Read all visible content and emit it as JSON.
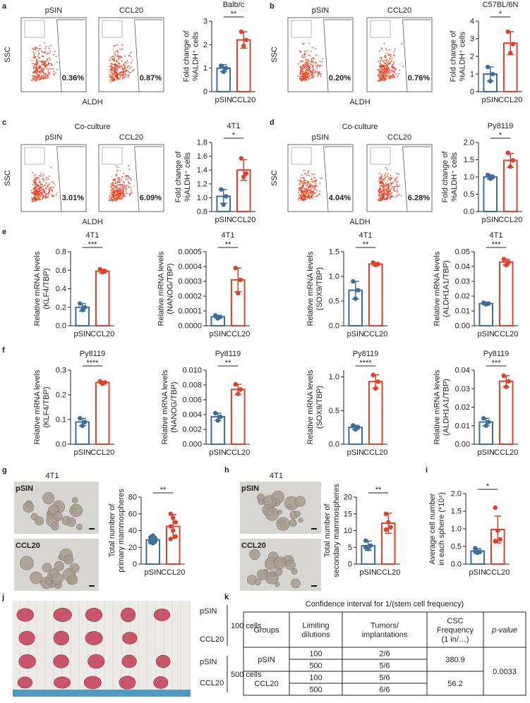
{
  "panel_letters": [
    "a",
    "b",
    "c",
    "d",
    "e",
    "f",
    "g",
    "h",
    "i",
    "j",
    "k"
  ],
  "flow_panels": [
    {
      "xlabel": "ALDH",
      "ylabel": "SSC",
      "colors": [
        "#3a6f9c",
        "#e2402b"
      ],
      "plots": [
        {
          "name": "pSIN",
          "percent": "0.36%"
        },
        {
          "name": "CCL20",
          "percent": "0.87%"
        }
      ]
    },
    {
      "xlabel": "ALDH",
      "ylabel": "SSC",
      "colors": [
        "#3a6f9c",
        "#e2402b"
      ],
      "plots": [
        {
          "name": "pSIN",
          "percent": "0.20%"
        },
        {
          "name": "CCL20",
          "percent": "0.76%"
        }
      ]
    },
    {
      "header": "Co-culture",
      "xlabel": "ALDH",
      "ylabel": "SSC",
      "colors": [
        "#3a6f9c",
        "#e2402b"
      ],
      "plots": [
        {
          "name": "pSIN",
          "percent": "3.01%"
        },
        {
          "name": "CCL20",
          "percent": "6.09%"
        }
      ]
    },
    {
      "header": "Co-culture",
      "xlabel": "ALDH",
      "ylabel": "SSC",
      "colors": [
        "#3a6f9c",
        "#e2402b"
      ],
      "plots": [
        {
          "name": "pSIN",
          "percent": "4.04%"
        },
        {
          "name": "CCL20",
          "percent": "6.28%"
        }
      ]
    }
  ],
  "chart_data": [
    {
      "type": "bar",
      "title": "Balb/c",
      "ylabel": [
        "Fold change of",
        "%ALDH⁺ cells"
      ],
      "categories": [
        "pSIN",
        "CCL20"
      ],
      "colors": [
        "#3a6f9c",
        "#e2402b"
      ],
      "values": [
        1.0,
        2.2
      ],
      "errors": [
        0.15,
        0.35
      ],
      "points": [
        [
          1.1,
          0.85,
          1.0
        ],
        [
          2.55,
          1.95,
          2.2
        ]
      ],
      "significance": "**",
      "ylim": [
        0,
        3
      ],
      "yticks": [
        0,
        1,
        2,
        3
      ]
    },
    {
      "type": "bar",
      "title": "C57BL/6N",
      "ylabel": [
        "Fold change of",
        "%ALDH⁺ cells"
      ],
      "categories": [
        "pSIN",
        "CCL20"
      ],
      "colors": [
        "#3a6f9c",
        "#e2402b"
      ],
      "values": [
        1.0,
        2.75
      ],
      "errors": [
        0.4,
        0.65
      ],
      "points": [
        [
          1.4,
          0.6,
          1.0
        ],
        [
          3.4,
          2.2,
          2.7
        ]
      ],
      "significance": "*",
      "ylim": [
        0,
        4
      ],
      "yticks": [
        0,
        1,
        2,
        3,
        4
      ]
    },
    {
      "type": "bar",
      "title": "4T1",
      "ylabel": [
        "Fold change of",
        "%ALDH⁺ cells"
      ],
      "categories": [
        "pSIN",
        "CCL20"
      ],
      "colors": [
        "#3a6f9c",
        "#e2402b"
      ],
      "values": [
        1.02,
        1.4
      ],
      "errors": [
        0.1,
        0.15
      ],
      "points": [
        [
          1.12,
          0.9,
          1.02
        ],
        [
          1.57,
          1.3,
          1.35
        ]
      ],
      "significance": "*",
      "ylim": [
        0.8,
        1.8
      ],
      "yticks": [
        0.8,
        {
          "value": 1,
          "label": "1.0"
        },
        1.2,
        1.4,
        1.6,
        1.8
      ]
    },
    {
      "type": "bar",
      "title": "Py8119",
      "ylabel": [
        "Fold change of",
        "%ALDH⁺ cells"
      ],
      "categories": [
        "pSIN",
        "CCL20"
      ],
      "colors": [
        "#3a6f9c",
        "#e2402b"
      ],
      "values": [
        1.0,
        1.48
      ],
      "errors": [
        0.06,
        0.2
      ],
      "points": [
        [
          1.06,
          0.95,
          1.0
        ],
        [
          1.7,
          1.3,
          1.48
        ]
      ],
      "significance": "*",
      "ylim": [
        0,
        2
      ],
      "yticks": [
        {
          "value": 0,
          "label": "0.0"
        },
        0.5,
        {
          "value": 1,
          "label": "1.0"
        },
        1.5,
        {
          "value": 2,
          "label": "2.0"
        }
      ]
    },
    {
      "type": "bar",
      "title": "4T1",
      "ylabel": [
        "Relative mRNA levels",
        "(KLF4/TBP)"
      ],
      "categories": [
        "pSIN",
        "CCL20"
      ],
      "colors": [
        "#3a6f9c",
        "#e2402b"
      ],
      "values": [
        0.2,
        0.59
      ],
      "errors": [
        0.04,
        0.02
      ],
      "points": [
        [
          0.24,
          0.17,
          0.2
        ],
        [
          0.61,
          0.58,
          0.59
        ]
      ],
      "significance": "***",
      "ylim": [
        0,
        0.8
      ],
      "yticks": [
        {
          "value": 0,
          "label": "0.0"
        },
        0.2,
        0.4,
        0.6,
        0.8
      ]
    },
    {
      "type": "bar",
      "title": "4T1",
      "ylabel": [
        "Relative mRNA levels",
        "(NANOG/TBP)"
      ],
      "categories": [
        "pSIN",
        "CCL20"
      ],
      "colors": [
        "#3a6f9c",
        "#e2402b"
      ],
      "values": [
        6e-05,
        0.00031
      ],
      "errors": [
        1e-05,
        8e-05
      ],
      "points": [
        [
          7e-05,
          5e-05,
          6e-05
        ],
        [
          0.00039,
          0.00022,
          0.00031
        ]
      ],
      "significance": "**",
      "ylim": [
        0,
        0.0005
      ],
      "yticks": [
        {
          "value": 0,
          "label": "0.0000"
        },
        {
          "value": 0.0001,
          "label": "0.0001"
        },
        {
          "value": 0.0002,
          "label": "0.0002"
        },
        {
          "value": 0.0003,
          "label": "0.0003"
        },
        {
          "value": 0.0004,
          "label": "0.0004"
        },
        {
          "value": 0.0005,
          "label": "0.0005"
        }
      ]
    },
    {
      "type": "bar",
      "title": "4T1",
      "ylabel": [
        "Relative mRNA levels",
        "(SOX9/TBP)"
      ],
      "categories": [
        "pSIN",
        "CCL20"
      ],
      "colors": [
        "#3a6f9c",
        "#e2402b"
      ],
      "values": [
        0.72,
        1.25
      ],
      "errors": [
        0.18,
        0.03
      ],
      "points": [
        [
          0.9,
          0.55,
          0.72
        ],
        [
          1.28,
          1.23,
          1.25
        ]
      ],
      "significance": "**",
      "ylim": [
        0,
        1.5
      ],
      "yticks": [
        {
          "value": 0,
          "label": "0.0"
        },
        0.5,
        {
          "value": 1,
          "label": "1.0"
        },
        1.5
      ]
    },
    {
      "type": "bar",
      "title": "4T1",
      "ylabel": [
        "Relative mRNA levels",
        "(ALDH1A1/TBP)"
      ],
      "categories": [
        "pSIN",
        "CCL20"
      ],
      "colors": [
        "#3a6f9c",
        "#e2402b"
      ],
      "values": [
        0.015,
        0.043
      ],
      "errors": [
        0.001,
        0.002
      ],
      "points": [
        [
          0.0155,
          0.0145,
          0.015
        ],
        [
          0.045,
          0.041,
          0.043
        ]
      ],
      "significance": "***",
      "ylim": [
        0,
        0.05
      ],
      "yticks": [
        {
          "value": 0,
          "label": "0.00"
        },
        0.01,
        0.02,
        0.03,
        0.04,
        0.05
      ]
    },
    {
      "type": "bar",
      "title": "Py8119",
      "ylabel": [
        "Relative mRNA levels",
        "(KLF4/TBP)"
      ],
      "categories": [
        "pSIN",
        "CCL20"
      ],
      "colors": [
        "#3a6f9c",
        "#e2402b"
      ],
      "values": [
        0.09,
        0.25
      ],
      "errors": [
        0.015,
        0.005
      ],
      "points": [
        [
          0.105,
          0.075,
          0.09
        ],
        [
          0.255,
          0.245,
          0.25
        ]
      ],
      "significance": "****",
      "ylim": [
        0,
        0.3
      ],
      "yticks": [
        {
          "value": 0,
          "label": "0.0"
        },
        0.1,
        0.2,
        0.3
      ]
    },
    {
      "type": "bar",
      "title": "Py8119",
      "ylabel": [
        "Relative mRNA levels",
        "(NANOG/TBP)"
      ],
      "categories": [
        "pSIN",
        "CCL20"
      ],
      "colors": [
        "#3a6f9c",
        "#e2402b"
      ],
      "values": [
        0.0037,
        0.0074
      ],
      "errors": [
        0.0005,
        0.0007
      ],
      "points": [
        [
          0.0042,
          0.0032,
          0.0037
        ],
        [
          0.0081,
          0.0068,
          0.0074
        ]
      ],
      "significance": "**",
      "ylim": [
        0,
        0.01
      ],
      "yticks": [
        {
          "value": 0,
          "label": "0.000"
        },
        0.002,
        0.004,
        0.006,
        0.008,
        {
          "value": 0.01,
          "label": "0.010"
        }
      ]
    },
    {
      "type": "bar",
      "title": "Py8119",
      "ylabel": [
        "Relative mRNA levels",
        "(SOX9/TBP)"
      ],
      "categories": [
        "pSIN",
        "CCL20"
      ],
      "colors": [
        "#3a6f9c",
        "#e2402b"
      ],
      "values": [
        0.25,
        0.93
      ],
      "errors": [
        0.03,
        0.1
      ],
      "points": [
        [
          0.28,
          0.22,
          0.25
        ],
        [
          1.03,
          0.83,
          0.93
        ]
      ],
      "significance": "****",
      "ylim": [
        0,
        1.1
      ],
      "yticks": [
        {
          "value": 0,
          "label": "0.0"
        },
        0.5,
        {
          "value": 1,
          "label": "1.0"
        }
      ]
    },
    {
      "type": "bar",
      "title": "Py8119",
      "ylabel": [
        "Relative mRNA levels",
        "(ALDH1A1/TBP)"
      ],
      "categories": [
        "pSIN",
        "CCL20"
      ],
      "colors": [
        "#3a6f9c",
        "#e2402b"
      ],
      "values": [
        0.012,
        0.034
      ],
      "errors": [
        0.002,
        0.003
      ],
      "points": [
        [
          0.014,
          0.01,
          0.012
        ],
        [
          0.037,
          0.031,
          0.034
        ]
      ],
      "significance": "***",
      "ylim": [
        0,
        0.04
      ],
      "yticks": [
        {
          "value": 0,
          "label": "0.00"
        },
        0.01,
        0.02,
        0.03,
        0.04
      ]
    },
    {
      "type": "bar",
      "ylabel": [
        "Total number of",
        "primary mammospheres"
      ],
      "categories": [
        "pSIN",
        "CCL20"
      ],
      "colors": [
        "#3a6f9c",
        "#e2402b"
      ],
      "values": [
        29,
        45
      ],
      "errors": [
        4,
        14
      ],
      "points": [
        [
          32,
          25,
          30,
          27,
          34,
          28,
          26
        ],
        [
          60,
          55,
          50,
          45,
          40,
          33,
          30
        ]
      ],
      "significance": "**",
      "ylim": [
        0,
        80
      ],
      "yticks": [
        0,
        20,
        40,
        60,
        80
      ]
    },
    {
      "type": "bar",
      "ylabel": [
        "Total number of",
        "secondary mammospheres"
      ],
      "categories": [
        "pSIN",
        "CCL20"
      ],
      "colors": [
        "#3a6f9c",
        "#e2402b"
      ],
      "values": [
        5.5,
        12.2
      ],
      "errors": [
        1.4,
        3
      ],
      "points": [
        [
          7,
          4.5,
          5.5,
          5
        ],
        [
          15,
          12.5,
          11,
          10.3
        ]
      ],
      "significance": "**",
      "ylim": [
        0,
        20
      ],
      "yticks": [
        0,
        5,
        10,
        15,
        20
      ]
    },
    {
      "type": "bar",
      "ylabel": [
        "Average cell number",
        "in each sphere (*10⁴)"
      ],
      "categories": [
        "pSIN",
        "CCL20"
      ],
      "colors": [
        "#3a6f9c",
        "#e2402b"
      ],
      "values": [
        0.37,
        0.98
      ],
      "errors": [
        0.07,
        0.38
      ],
      "points": [
        [
          0.45,
          0.32,
          0.35,
          0.36
        ],
        [
          1.6,
          0.95,
          0.7,
          0.65
        ]
      ],
      "significance": "*",
      "ylim": [
        0,
        2
      ],
      "yticks": [
        {
          "value": 0,
          "label": "0.0"
        },
        0.5,
        {
          "value": 1,
          "label": "1.0"
        },
        1.5,
        {
          "value": 2,
          "label": "2.0"
        }
      ]
    }
  ],
  "micrographs": [
    {
      "title": "4T1",
      "labels": [
        "pSIN",
        "CCL20"
      ],
      "colors": [
        "#3a6f9c",
        "#e2402b"
      ]
    },
    {
      "title": "4T1",
      "labels": [
        "pSIN",
        "CCL20"
      ],
      "colors": [
        "#3a6f9c",
        "#e2402b"
      ]
    }
  ],
  "tumor_photo": {
    "rows": [
      "pSIN",
      "CCL20",
      "pSIN",
      "CCL20"
    ],
    "groups": [
      "100 cells",
      "500 cells"
    ]
  },
  "table": {
    "title": "Confidence interval for 1/(stem cell frequency)",
    "header": [
      [
        "Groups"
      ],
      [
        "Limiting",
        "dilutions"
      ],
      [
        "Tumors/",
        "implantations"
      ],
      [
        "CSC",
        "Frequency",
        "(1 in/…)"
      ],
      [
        "p-value"
      ]
    ],
    "groups": [
      {
        "name": "pSIN",
        "frequency": "380.9",
        "rows": [
          [
            "100",
            "2/6"
          ],
          [
            "500",
            "5/6"
          ]
        ]
      },
      {
        "name": "CCL20",
        "frequency": "56.2",
        "rows": [
          [
            "100",
            "5/6"
          ],
          [
            "500",
            "6/6"
          ]
        ]
      }
    ],
    "p_value": "0.0033",
    "p_color": "#e2402b"
  }
}
